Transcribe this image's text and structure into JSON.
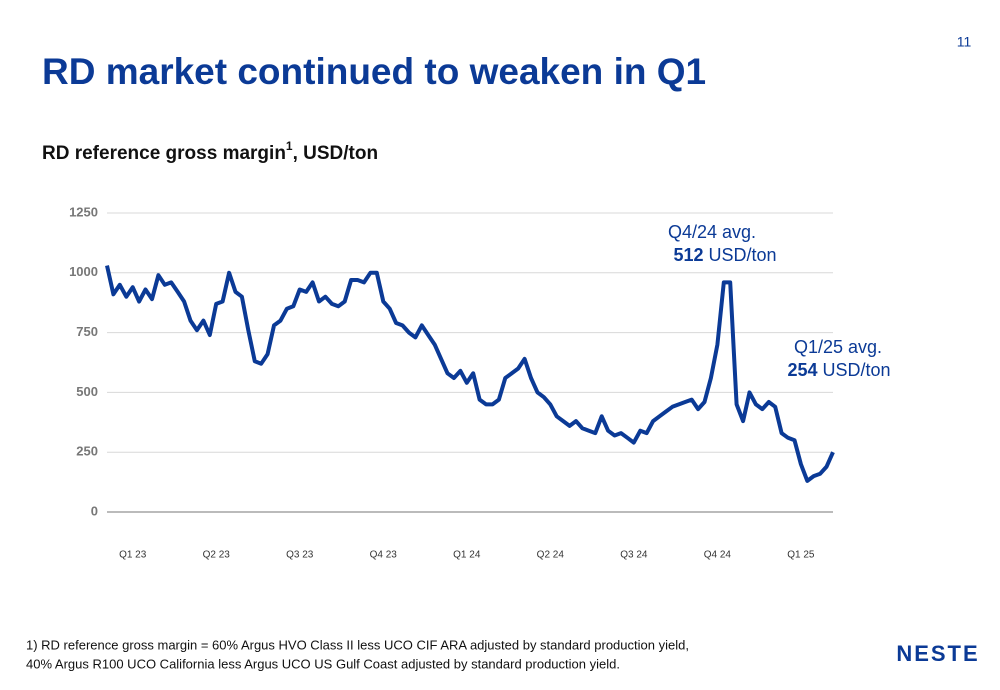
{
  "page_number": "11",
  "slide_title": "RD market continued to weaken in Q1",
  "chart_data": {
    "type": "line",
    "title": {
      "text": "RD reference gross margin",
      "superscript": "1",
      "suffix": ", USD/ton"
    },
    "categories": [
      null,
      null,
      null,
      null,
      "Q1 23",
      null,
      null,
      null,
      null,
      null,
      null,
      null,
      null,
      null,
      null,
      null,
      null,
      "Q2 23",
      null,
      null,
      null,
      null,
      null,
      null,
      null,
      null,
      null,
      null,
      null,
      null,
      "Q3 23",
      null,
      null,
      null,
      null,
      null,
      null,
      null,
      null,
      null,
      null,
      null,
      null,
      "Q4 23",
      null,
      null,
      null,
      null,
      null,
      null,
      null,
      null,
      null,
      null,
      null,
      null,
      "Q1 24",
      null,
      null,
      null,
      null,
      null,
      null,
      null,
      null,
      null,
      null,
      null,
      null,
      "Q2 24",
      null,
      null,
      null,
      null,
      null,
      null,
      null,
      null,
      null,
      null,
      null,
      null,
      "Q3 24",
      null,
      null,
      null,
      null,
      null,
      null,
      null,
      null,
      null,
      null,
      null,
      null,
      "Q4 24",
      null,
      null,
      null,
      null,
      null,
      null,
      null,
      null,
      null,
      null,
      null,
      null,
      "Q1 25",
      null,
      null,
      null,
      null,
      null
    ],
    "series": [
      {
        "name": "RD reference gross margin",
        "color": "#0b3a96",
        "values": [
          1030,
          910,
          950,
          900,
          940,
          880,
          930,
          890,
          990,
          950,
          960,
          920,
          880,
          800,
          760,
          800,
          740,
          870,
          880,
          1000,
          920,
          900,
          760,
          630,
          620,
          660,
          780,
          800,
          850,
          860,
          930,
          920,
          960,
          880,
          900,
          870,
          860,
          880,
          970,
          970,
          960,
          1000,
          1000,
          880,
          850,
          790,
          780,
          750,
          730,
          780,
          740,
          700,
          640,
          580,
          560,
          590,
          540,
          580,
          470,
          450,
          450,
          470,
          560,
          580,
          600,
          640,
          560,
          500,
          480,
          450,
          400,
          380,
          360,
          380,
          350,
          340,
          330,
          400,
          340,
          320,
          330,
          310,
          290,
          340,
          330,
          380,
          400,
          420,
          440,
          450,
          460,
          470,
          430,
          460,
          560,
          700,
          960,
          960,
          450,
          380,
          500,
          450,
          430,
          460,
          440,
          330,
          310,
          300,
          200,
          130,
          150,
          160,
          190,
          250
        ]
      }
    ],
    "ylim": [
      0,
      1250
    ],
    "yticks": [
      0,
      250,
      500,
      750,
      1000,
      1250
    ],
    "grid": true,
    "annotations": [
      {
        "text": "Q4/24 avg.",
        "value": "512",
        "unit": "USD/ton"
      },
      {
        "text": "Q1/25 avg.",
        "value": "254",
        "unit": "USD/ton"
      }
    ]
  },
  "footnote": [
    "1) RD reference gross margin = 60% Argus HVO Class II less UCO CIF ARA adjusted by standard production yield,",
    "40% Argus R100 UCO California less Argus UCO US Gulf Coast adjusted by standard production yield."
  ],
  "logo": "NESTE"
}
